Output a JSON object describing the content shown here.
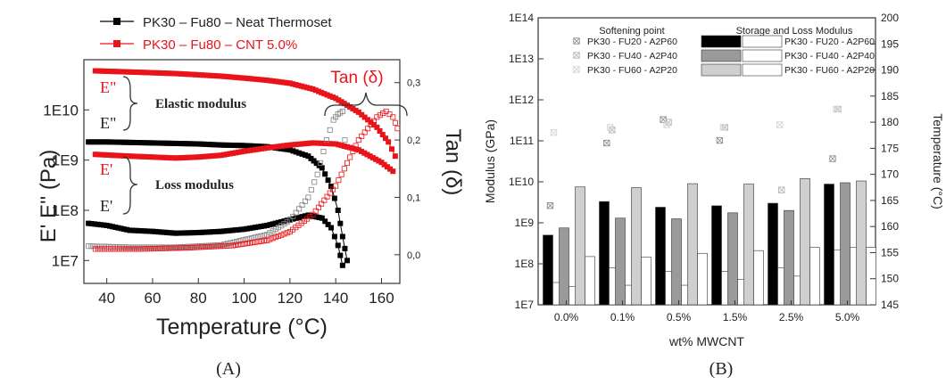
{
  "colors": {
    "black": "#000000",
    "red": "#e8141a",
    "dark_gray": "#6e6e6e",
    "mid_gray": "#9a9a9a",
    "light_gray": "#cfcfcf",
    "white": "#ffffff"
  },
  "chart_data": [
    {
      "panel_label": "(A)",
      "type": "line",
      "xlabel": "Temperature (°C)",
      "ylabel": "E' E'' (Pa)",
      "ylabel_right": "Tan (δ)",
      "xlim": [
        30,
        168
      ],
      "ylim_log": [
        3500000.0,
        100000000000.0
      ],
      "ylim_right": [
        -0.05,
        0.34
      ],
      "x_ticks": [
        "40",
        "60",
        "80",
        "100",
        "120",
        "140",
        "160"
      ],
      "y_ticks": [
        "1E7",
        "1E8",
        "1E9",
        "1E10"
      ],
      "y_right_ticks": [
        "0,0",
        "0,1",
        "0,2",
        "0,3"
      ],
      "legend": [
        "PK30 – Fu80 – Neat Thermoset",
        "PK30 – Fu80 – CNT 5.0%"
      ],
      "annotations": {
        "tan_delta": "Tan (δ)",
        "elastic_modulus": "Elastic modulus",
        "loss_modulus": "Loss modulus",
        "e2_red": "E\"",
        "e2_black": "E\"",
        "e1_red": "E'",
        "e1_black": "E'"
      },
      "series": [
        {
          "name": "PK30 – Fu80 – Neat Thermoset",
          "measure": "E' (elastic)",
          "axis": "left",
          "color": "#000000",
          "marker": "square",
          "points": [
            [
              32,
              2300000000.0
            ],
            [
              40,
              2300000000.0
            ],
            [
              50,
              2250000000.0
            ],
            [
              60,
              2200000000.0
            ],
            [
              70,
              2150000000.0
            ],
            [
              80,
              2100000000.0
            ],
            [
              90,
              2000000000.0
            ],
            [
              100,
              1950000000.0
            ],
            [
              110,
              1850000000.0
            ],
            [
              120,
              1600000000.0
            ],
            [
              128,
              1200000000.0
            ],
            [
              134,
              700000000.0
            ],
            [
              138,
              300000000.0
            ],
            [
              141,
              100000000.0
            ],
            [
              143,
              30000000.0
            ],
            [
              145,
              10000000.0
            ]
          ]
        },
        {
          "name": "PK30 – Fu80 – Neat Thermoset",
          "measure": "E\" (loss)",
          "axis": "left",
          "color": "#000000",
          "marker": "square",
          "points": [
            [
              32,
              55000000.0
            ],
            [
              40,
              50000000.0
            ],
            [
              50,
              40000000.0
            ],
            [
              60,
              38000000.0
            ],
            [
              70,
              35000000.0
            ],
            [
              80,
              36000000.0
            ],
            [
              90,
              38000000.0
            ],
            [
              100,
              42000000.0
            ],
            [
              110,
              50000000.0
            ],
            [
              120,
              65000000.0
            ],
            [
              128,
              80000000.0
            ],
            [
              134,
              70000000.0
            ],
            [
              138,
              45000000.0
            ],
            [
              141,
              20000000.0
            ],
            [
              143,
              8000000.0
            ]
          ]
        },
        {
          "name": "PK30 – Fu80 – CNT 5.0%",
          "measure": "E' (elastic)",
          "axis": "left",
          "color": "#e8141a",
          "marker": "square",
          "points": [
            [
              35,
              60000000000.0
            ],
            [
              50,
              57000000000.0
            ],
            [
              60,
              55000000000.0
            ],
            [
              70,
              53000000000.0
            ],
            [
              80,
              50000000000.0
            ],
            [
              90,
              47000000000.0
            ],
            [
              100,
              43000000000.0
            ],
            [
              110,
              39000000000.0
            ],
            [
              120,
              34000000000.0
            ],
            [
              130,
              26000000000.0
            ],
            [
              140,
              17000000000.0
            ],
            [
              150,
              9000000000.0
            ],
            [
              158,
              4500000000.0
            ],
            [
              163,
              2300000000.0
            ],
            [
              166,
              1200000000.0
            ]
          ]
        },
        {
          "name": "PK30 – Fu80 – CNT 5.0%",
          "measure": "E\" (loss)",
          "axis": "left",
          "color": "#e8141a",
          "marker": "square",
          "points": [
            [
              35,
              1300000000.0
            ],
            [
              50,
              1200000000.0
            ],
            [
              60,
              1150000000.0
            ],
            [
              70,
              1100000000.0
            ],
            [
              80,
              1150000000.0
            ],
            [
              90,
              1250000000.0
            ],
            [
              100,
              1500000000.0
            ],
            [
              110,
              1750000000.0
            ],
            [
              120,
              2000000000.0
            ],
            [
              130,
              2200000000.0
            ],
            [
              140,
              2100000000.0
            ],
            [
              150,
              1600000000.0
            ],
            [
              160,
              900000000.0
            ],
            [
              165,
              600000000.0
            ]
          ]
        },
        {
          "name": "PK30 – Fu80 – Neat Thermoset",
          "measure": "Tan (δ)",
          "axis": "right",
          "color": "#808080",
          "marker": "crossed-square",
          "points": [
            [
              32,
              0.015
            ],
            [
              50,
              0.013
            ],
            [
              70,
              0.013
            ],
            [
              90,
              0.017
            ],
            [
              110,
              0.035
            ],
            [
              120,
              0.06
            ],
            [
              128,
              0.1
            ],
            [
              132,
              0.14
            ],
            [
              136,
              0.2
            ],
            [
              139,
              0.235
            ],
            [
              141,
              0.245
            ],
            [
              143,
              0.25
            ],
            [
              144,
              0.2
            ]
          ]
        },
        {
          "name": "PK30 – Fu80 – CNT 5.0%",
          "measure": "Tan (δ)",
          "axis": "right",
          "color": "#e8141a",
          "marker": "crossed-square",
          "points": [
            [
              35,
              0.01
            ],
            [
              55,
              0.01
            ],
            [
              75,
              0.012
            ],
            [
              95,
              0.016
            ],
            [
              110,
              0.025
            ],
            [
              120,
              0.04
            ],
            [
              130,
              0.07
            ],
            [
              140,
              0.12
            ],
            [
              150,
              0.2
            ],
            [
              158,
              0.24
            ],
            [
              162,
              0.25
            ],
            [
              165,
              0.24
            ],
            [
              167,
              0.22
            ]
          ]
        }
      ]
    },
    {
      "panel_label": "(B)",
      "type": "bar",
      "xlabel": "wt% MWCNT",
      "ylabel": "Modulus (GPa)",
      "ylabel_right": "Temperature (°C)",
      "categories": [
        "0.0%",
        "0.1%",
        "0.5%",
        "1.5%",
        "2.5%",
        "5.0%"
      ],
      "ylim_log": [
        10000000.0,
        100000000000000.0
      ],
      "y_ticks": [
        "1E7",
        "1E8",
        "1E9",
        "1E10",
        "1E11",
        "1E12",
        "1E13",
        "1E14"
      ],
      "ylim_right": [
        145,
        200
      ],
      "y_right_ticks": [
        "145",
        "150",
        "155",
        "160",
        "165",
        "170",
        "175",
        "180",
        "185",
        "190",
        "195",
        "200"
      ],
      "legend_left_title": "Softening point",
      "legend_right_title": "Storage and Loss Modulus",
      "legend_labels": [
        "PK30 - FU20 - A2P60",
        "PK30 - FU40 - A2P40",
        "PK30 - FU60 - A2P20"
      ],
      "bar_series": [
        {
          "name": "PK30 - FU20 - A2P60",
          "storage": [
            500000000.0,
            3300000000.0,
            2400000000.0,
            2600000000.0,
            3000000000.0,
            8800000000.0
          ],
          "loss": [
            35000000.0,
            80000000.0,
            65000000.0,
            65000000.0,
            80000000.0,
            220000000.0
          ]
        },
        {
          "name": "PK30 - FU40 - A2P40",
          "storage": [
            750000000.0,
            1300000000.0,
            1250000000.0,
            1750000000.0,
            2000000000.0,
            9500000000.0
          ],
          "loss": [
            28000000.0,
            30000000.0,
            30000000.0,
            42000000.0,
            50000000.0,
            250000000.0
          ]
        },
        {
          "name": "PK30 - FU60 - A2P20",
          "storage": [
            7500000000.0,
            7200000000.0,
            9000000000.0,
            8800000000.0,
            12000000000.0,
            10500000000.0
          ],
          "loss": [
            150000000.0,
            145000000.0,
            180000000.0,
            210000000.0,
            250000000.0,
            250000000.0
          ]
        }
      ],
      "softening_point": [
        {
          "name": "PK30 - FU20 - A2P60",
          "values": [
            164,
            176,
            180.5,
            176.5,
            null,
            173
          ]
        },
        {
          "name": "PK30 - FU40 - A2P40",
          "values": [
            null,
            178.5,
            180,
            179,
            167,
            182.5
          ]
        },
        {
          "name": "PK30 - FU60 - A2P20",
          "values": [
            178,
            179,
            179.5,
            179,
            179.5,
            182.5
          ]
        }
      ]
    }
  ]
}
